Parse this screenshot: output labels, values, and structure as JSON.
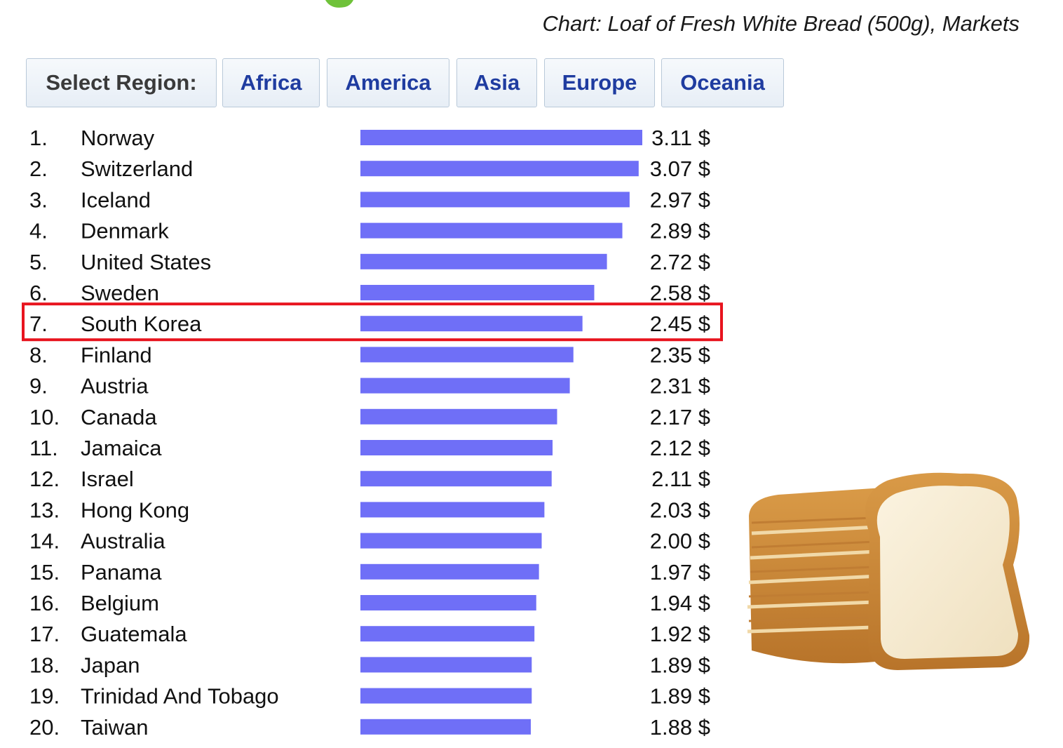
{
  "title": "Chart: Loaf of Fresh White Bread (500g), Markets",
  "region_selector": {
    "label": "Select Region:",
    "regions": [
      "Africa",
      "America",
      "Asia",
      "Europe",
      "Oceania"
    ]
  },
  "colors": {
    "bar": "#6f6ff7",
    "highlight": "#e8141e",
    "link": "#1f3ca0"
  },
  "value_suffix": " $",
  "highlighted_country": "South Korea",
  "chart_data": {
    "type": "bar",
    "orientation": "horizontal",
    "title": "Chart: Loaf of Fresh White Bread (500g), Markets",
    "unit": "$",
    "categories": [
      "Norway",
      "Switzerland",
      "Iceland",
      "Denmark",
      "United States",
      "Sweden",
      "South Korea",
      "Finland",
      "Austria",
      "Canada",
      "Jamaica",
      "Israel",
      "Hong Kong",
      "Australia",
      "Panama",
      "Belgium",
      "Guatemala",
      "Japan",
      "Trinidad And Tobago",
      "Taiwan"
    ],
    "ranks": [
      "1.",
      "2.",
      "3.",
      "4.",
      "5.",
      "6.",
      "7.",
      "8.",
      "9.",
      "10.",
      "11.",
      "12.",
      "13.",
      "14.",
      "15.",
      "16.",
      "17.",
      "18.",
      "19.",
      "20."
    ],
    "values": [
      3.11,
      3.07,
      2.97,
      2.89,
      2.72,
      2.58,
      2.45,
      2.35,
      2.31,
      2.17,
      2.12,
      2.11,
      2.03,
      2.0,
      1.97,
      1.94,
      1.92,
      1.89,
      1.89,
      1.88
    ],
    "value_labels": [
      "3.11",
      "3.07",
      "2.97",
      "2.89",
      "2.72",
      "2.58",
      "2.45",
      "2.35",
      "2.31",
      "2.17",
      "2.12",
      "2.11",
      "2.03",
      "2.00",
      "1.97",
      "1.94",
      "1.92",
      "1.89",
      "1.89",
      "1.88"
    ],
    "xlim": [
      0,
      3.11
    ],
    "grid": false,
    "legend": "none"
  }
}
